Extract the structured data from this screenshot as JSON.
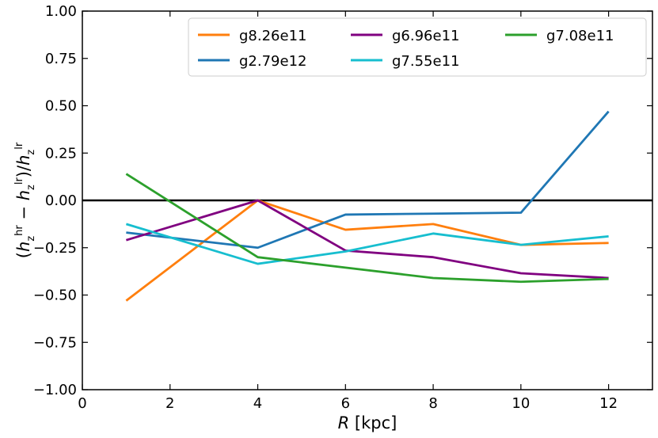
{
  "chart_data": {
    "type": "line",
    "title": "",
    "xlabel_italic": "R",
    "xlabel_rest": " [kpc]",
    "ylabel": "(h_z^hr − h_z^lr)/h_z^lr",
    "xlim": [
      0,
      13
    ],
    "ylim": [
      -1.0,
      1.0
    ],
    "xticks": [
      0,
      2,
      4,
      6,
      8,
      10,
      12
    ],
    "yticks": [
      -1.0,
      -0.75,
      -0.5,
      -0.25,
      0.0,
      0.25,
      0.5,
      0.75,
      1.0
    ],
    "xtick_labels": [
      "0",
      "2",
      "4",
      "6",
      "8",
      "10",
      "12"
    ],
    "ytick_labels": [
      "−1.00",
      "−0.75",
      "−0.50",
      "−0.25",
      "0.00",
      "0.25",
      "0.50",
      "0.75",
      "1.00"
    ],
    "reference_line_y": 0.0,
    "legend_position": "top-right",
    "x": [
      1,
      4,
      6,
      8,
      10,
      12
    ],
    "series": [
      {
        "name": "g8.26e11",
        "color": "#ff7f0e",
        "values": [
          -0.53,
          0.0,
          -0.155,
          -0.125,
          -0.235,
          -0.225
        ]
      },
      {
        "name": "g2.79e12",
        "color": "#1f77b4",
        "values": [
          -0.17,
          -0.25,
          -0.075,
          -0.07,
          -0.065,
          0.47
        ]
      },
      {
        "name": "g6.96e11",
        "color": "#800080",
        "values": [
          -0.21,
          0.0,
          -0.265,
          -0.3,
          -0.385,
          -0.41
        ]
      },
      {
        "name": "g7.55e11",
        "color": "#17becf",
        "values": [
          -0.125,
          -0.335,
          -0.27,
          -0.175,
          -0.235,
          -0.19
        ]
      },
      {
        "name": "g7.08e11",
        "color": "#2ca02c",
        "values": [
          0.14,
          -0.3,
          -0.355,
          -0.41,
          -0.43,
          -0.415
        ]
      }
    ]
  }
}
